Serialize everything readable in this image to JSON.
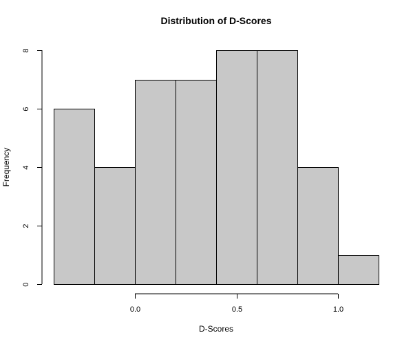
{
  "chart_data": {
    "type": "bar",
    "histogram": true,
    "title": "Distribution of D-Scores",
    "xlabel": "D-Scores",
    "ylabel": "Frequency",
    "bin_edges": [
      -0.4,
      -0.2,
      0.0,
      0.2,
      0.4,
      0.6,
      0.8,
      1.0,
      1.2
    ],
    "values": [
      6,
      4,
      7,
      7,
      8,
      8,
      4,
      1
    ],
    "x_ticks": [
      0.0,
      0.5,
      1.0
    ],
    "x_tick_labels": [
      "0.0",
      "0.5",
      "1.0"
    ],
    "y_ticks": [
      0,
      2,
      4,
      6,
      8
    ],
    "y_tick_labels": [
      "0",
      "2",
      "4",
      "6",
      "8"
    ],
    "ylim": [
      0,
      8
    ],
    "xlim": [
      -0.4,
      1.2
    ],
    "bar_fill": "#c8c8c8",
    "bar_edge": "#000000",
    "grid": false,
    "legend": "none"
  }
}
